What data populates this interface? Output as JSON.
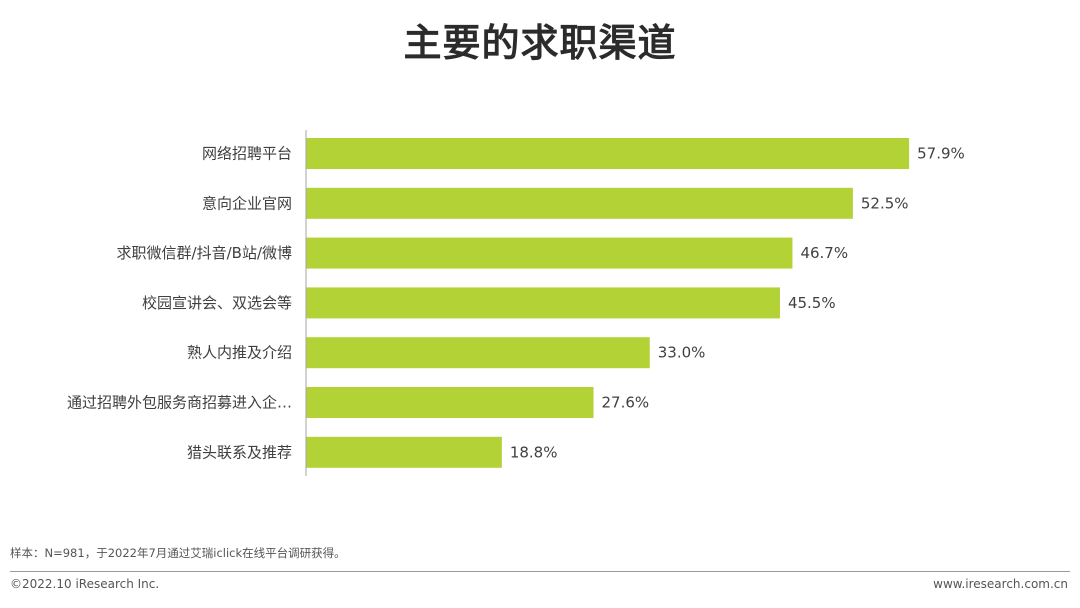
{
  "chart_data": {
    "type": "bar",
    "orientation": "horizontal",
    "title": "主要的求职渠道",
    "categories": [
      "网络招聘平台",
      "意向企业官网",
      "求职微信群/抖音/B站/微博",
      "校园宣讲会、双选会等",
      "熟人内推及介绍",
      "通过招聘外包服务商招募进入企…",
      "猎头联系及推荐"
    ],
    "values": [
      57.9,
      52.5,
      46.7,
      45.5,
      33.0,
      27.6,
      18.8
    ],
    "value_labels": [
      "57.9%",
      "52.5%",
      "46.7%",
      "45.5%",
      "33.0%",
      "27.6%",
      "18.8%"
    ],
    "unit": "%",
    "xlim": [
      0,
      60
    ],
    "grid": false,
    "legend": "none",
    "bar_color": "#b2d235"
  },
  "note": "样本：N=981，于2022年7月通过艾瑞iclick在线平台调研获得。",
  "footer": {
    "copyright": "©2022.10 iResearch Inc.",
    "website": "www.iresearch.com.cn"
  }
}
